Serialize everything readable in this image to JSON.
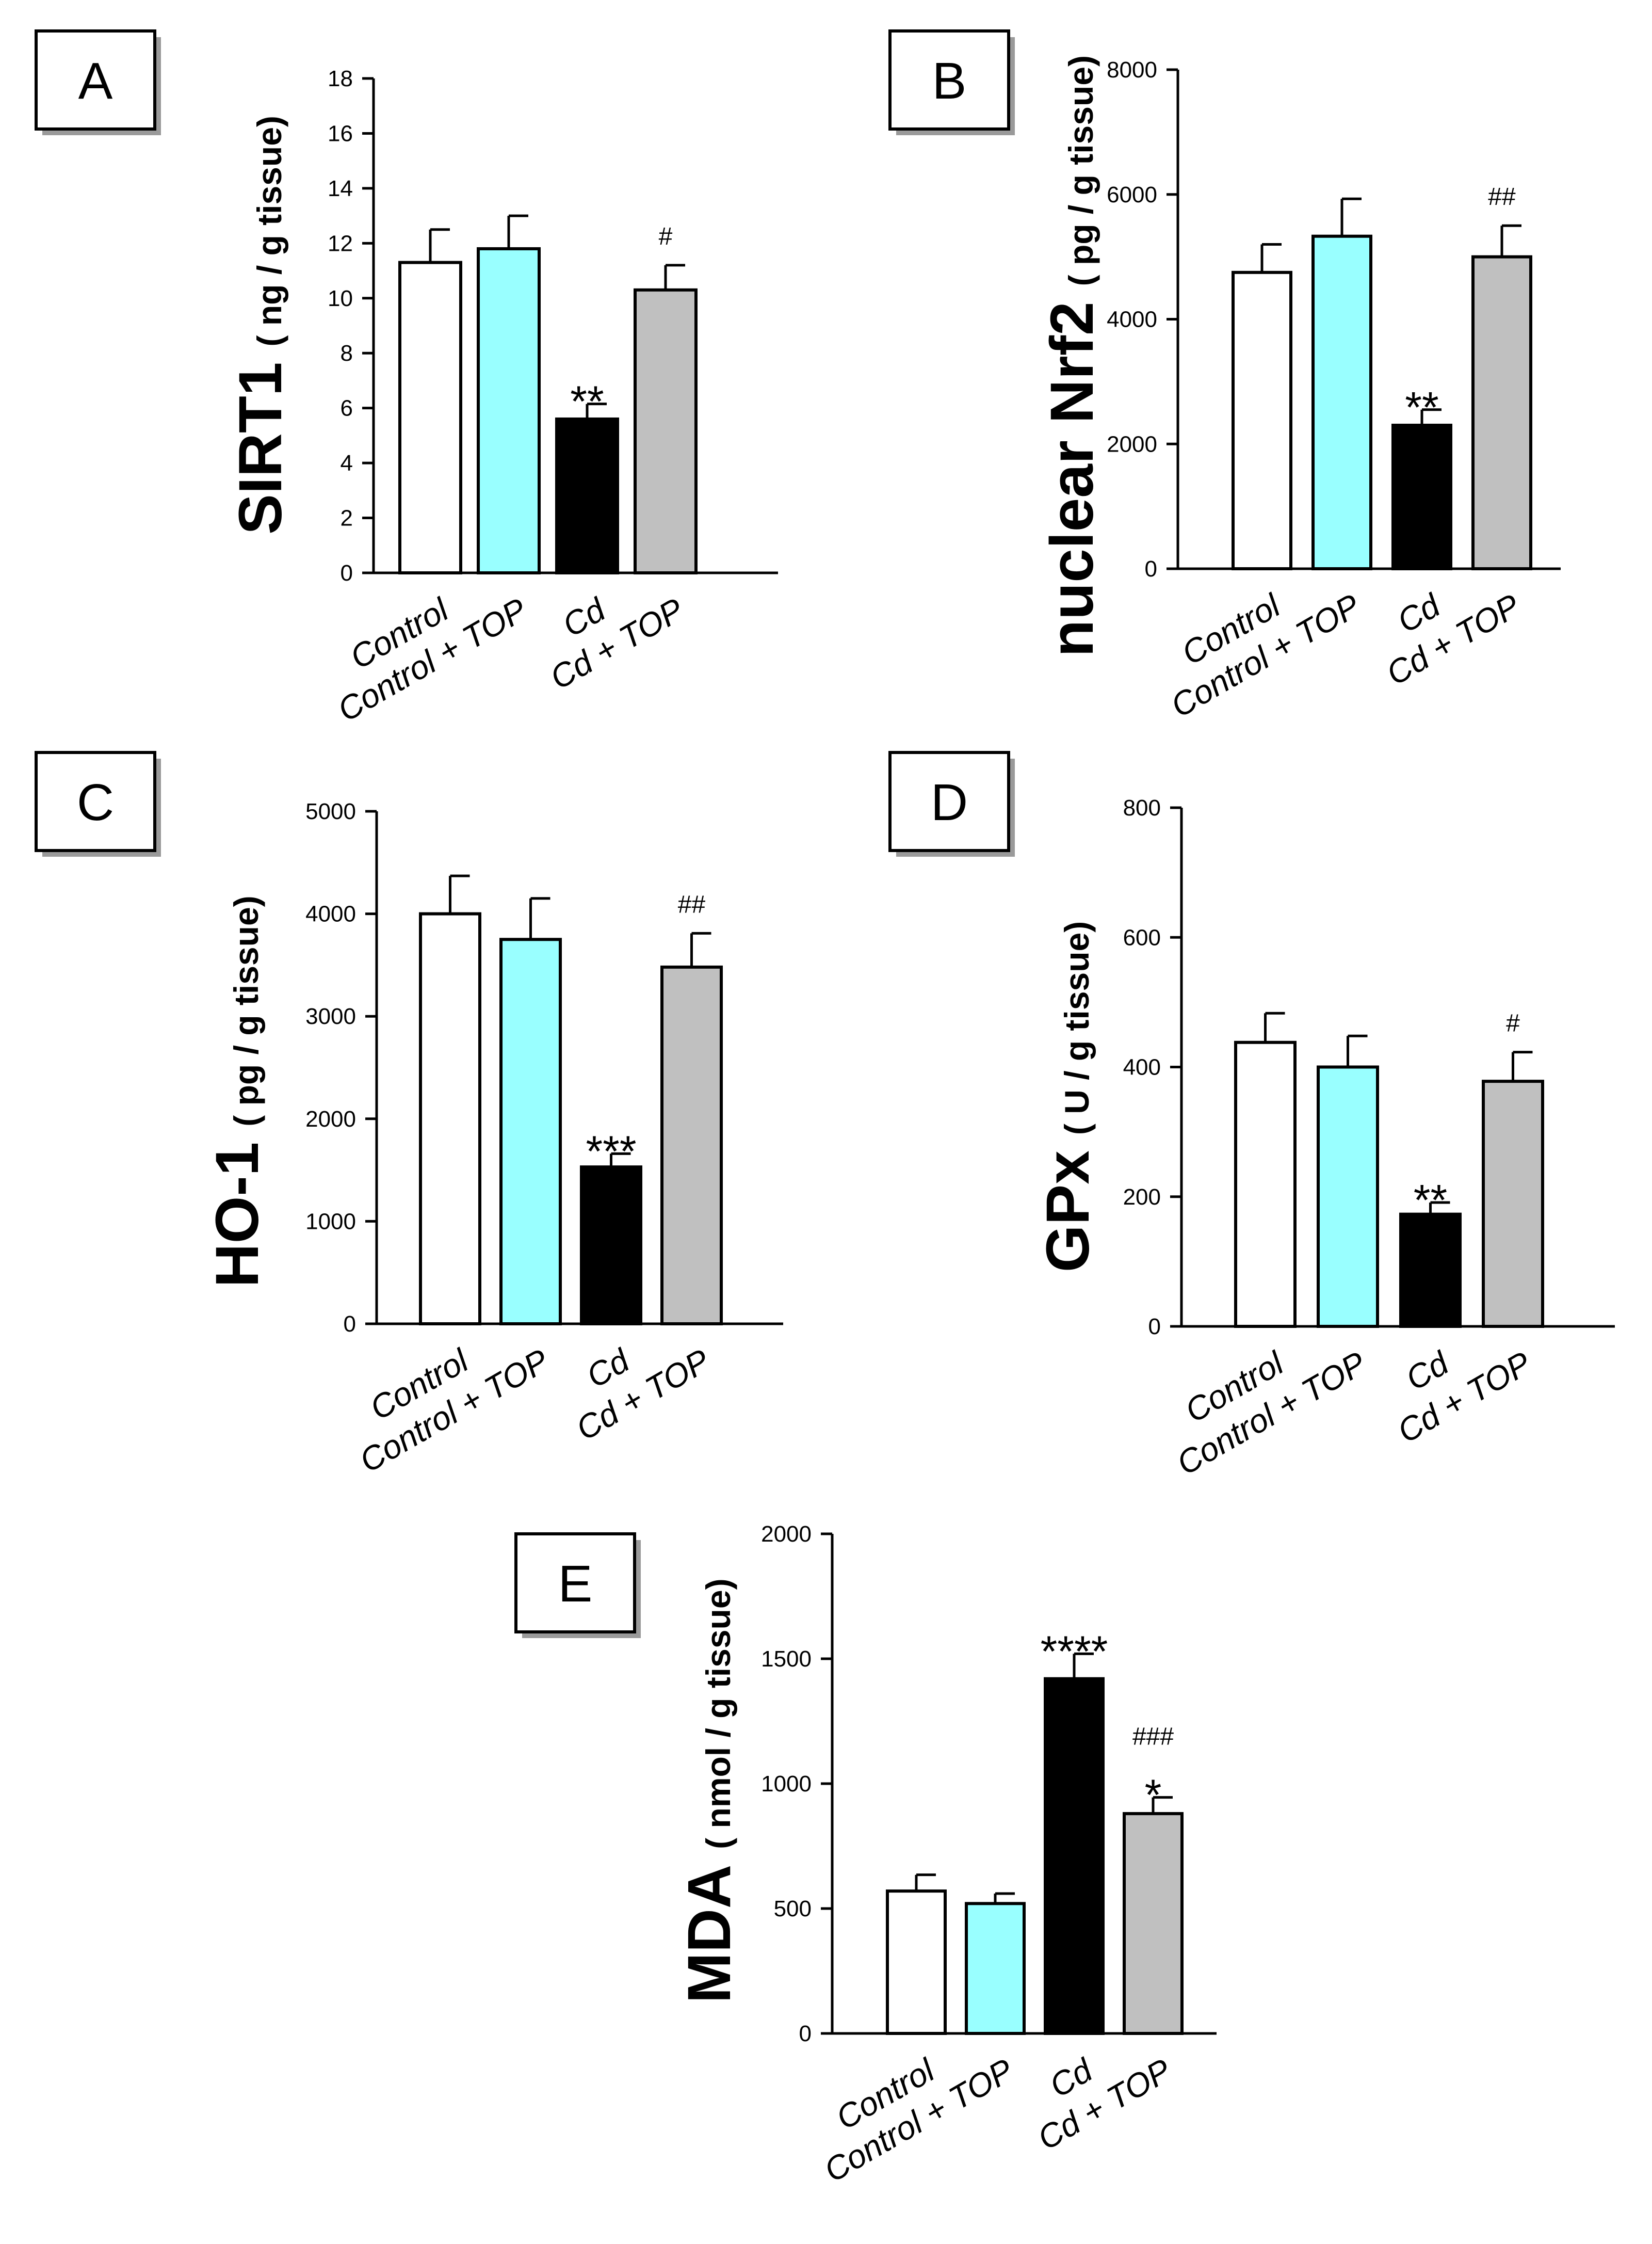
{
  "colors": {
    "Control": "#ffffff",
    "Control + TOP": "#99ffff",
    "Cd": "#000000",
    "Cd + TOP": "#c0c0c0"
  },
  "chart_data": [
    {
      "panel": "A",
      "type": "bar",
      "categories": [
        "Control",
        "Control + TOP",
        "Cd",
        "Cd + TOP"
      ],
      "values": [
        11.3,
        11.8,
        5.6,
        10.3
      ],
      "errors": [
        1.2,
        1.2,
        0.55,
        0.9
      ],
      "annotations": [
        [],
        [],
        [
          "**"
        ],
        [
          "#"
        ]
      ],
      "ylabel_main": "SIRT1",
      "ylabel_unit": "( ng / g tissue)",
      "ylim": [
        0,
        18
      ],
      "yticks": [
        0,
        2,
        4,
        6,
        8,
        10,
        12,
        14,
        16,
        18
      ]
    },
    {
      "panel": "B",
      "type": "bar",
      "categories": [
        "Control",
        "Control + TOP",
        "Cd",
        "Cd + TOP"
      ],
      "values": [
        4750,
        5330,
        2300,
        5000
      ],
      "errors": [
        450,
        600,
        250,
        500
      ],
      "annotations": [
        [],
        [],
        [
          "**"
        ],
        [
          "##"
        ]
      ],
      "ylabel_main": "nuclear Nrf2",
      "ylabel_unit": "( pg / g tissue)",
      "ylim": [
        0,
        8000
      ],
      "yticks": [
        0,
        2000,
        4000,
        6000,
        8000
      ]
    },
    {
      "panel": "C",
      "type": "bar",
      "categories": [
        "Control",
        "Control + TOP",
        "Cd",
        "Cd + TOP"
      ],
      "values": [
        4000,
        3750,
        1530,
        3480
      ],
      "errors": [
        370,
        400,
        130,
        330
      ],
      "annotations": [
        [],
        [],
        [
          "***"
        ],
        [
          "##"
        ]
      ],
      "ylabel_main": "HO-1",
      "ylabel_unit": "( pg / g tissue)",
      "ylim": [
        0,
        5000
      ],
      "yticks": [
        0,
        1000,
        2000,
        3000,
        4000,
        5000
      ]
    },
    {
      "panel": "D",
      "type": "bar",
      "categories": [
        "Control",
        "Control + TOP",
        "Cd",
        "Cd + TOP"
      ],
      "values": [
        438,
        400,
        173,
        378
      ],
      "errors": [
        45,
        48,
        18,
        45
      ],
      "annotations": [
        [],
        [],
        [
          "**"
        ],
        [
          "#"
        ]
      ],
      "ylabel_main": "GPx",
      "ylabel_unit": "( U / g tissue)",
      "ylim": [
        0,
        800
      ],
      "yticks": [
        0,
        200,
        400,
        600,
        800
      ]
    },
    {
      "panel": "E",
      "type": "bar",
      "categories": [
        "Control",
        "Control + TOP",
        "Cd",
        "Cd + TOP"
      ],
      "values": [
        570,
        520,
        1420,
        880
      ],
      "errors": [
        65,
        40,
        100,
        65
      ],
      "annotations": [
        [],
        [],
        [
          "****"
        ],
        [
          "###",
          "*"
        ]
      ],
      "ylabel_main": "MDA",
      "ylabel_unit": "( nmol / g tissue)",
      "ylim": [
        0,
        2000
      ],
      "yticks": [
        0,
        500,
        1000,
        1500,
        2000
      ]
    }
  ]
}
